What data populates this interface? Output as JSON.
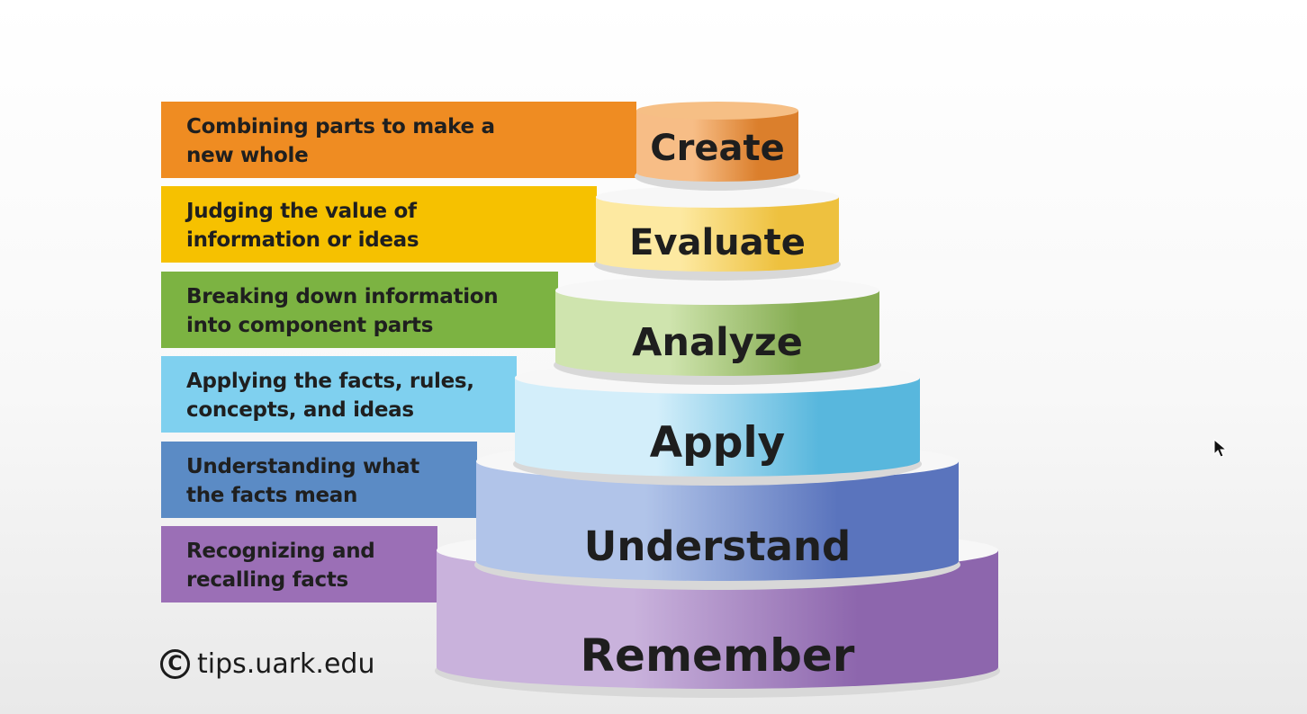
{
  "diagram": {
    "levels": [
      {
        "label": "Create",
        "description": [
          "Combining parts to make a",
          "new whole"
        ],
        "color": "#ef8c22",
        "top_color": "#f6bf85",
        "side_light": "#f7bd86",
        "side_dark": "#db7f2c"
      },
      {
        "label": "Evaluate",
        "description": [
          "Judging the value of",
          "information or ideas"
        ],
        "color": "#f6c100",
        "top_color": "#f8e7a4",
        "side_light": "#fde9a1",
        "side_dark": "#eec13f"
      },
      {
        "label": "Analyze",
        "description": [
          "Breaking down information",
          "into component parts"
        ],
        "color": "#7cb342",
        "top_color": "#cfe3b2",
        "side_light": "#cfe4ae",
        "side_dark": "#86ad52"
      },
      {
        "label": "Apply",
        "description": [
          "Applying the facts, rules,",
          "concepts, and ideas"
        ],
        "color": "#7fd0ef",
        "top_color": "#d6eff9",
        "side_light": "#d3eefa",
        "side_dark": "#58b7dd"
      },
      {
        "label": "Understand",
        "description": [
          "Understanding what",
          "the facts mean"
        ],
        "color": "#5b8bc5",
        "top_color": "#c9d6ec",
        "side_light": "#b1c4e9",
        "side_dark": "#5a74bd"
      },
      {
        "label": "Remember",
        "description": [
          "Recognizing and",
          "recalling facts"
        ],
        "color": "#9b6fb6",
        "top_color": "#dccbe6",
        "side_light": "#c9b2dc",
        "side_dark": "#8d66ad"
      }
    ]
  },
  "credit": {
    "icon": "copyright-icon",
    "text": "tips.uark.edu"
  },
  "cursor": {
    "icon": "mouse-pointer-icon"
  }
}
